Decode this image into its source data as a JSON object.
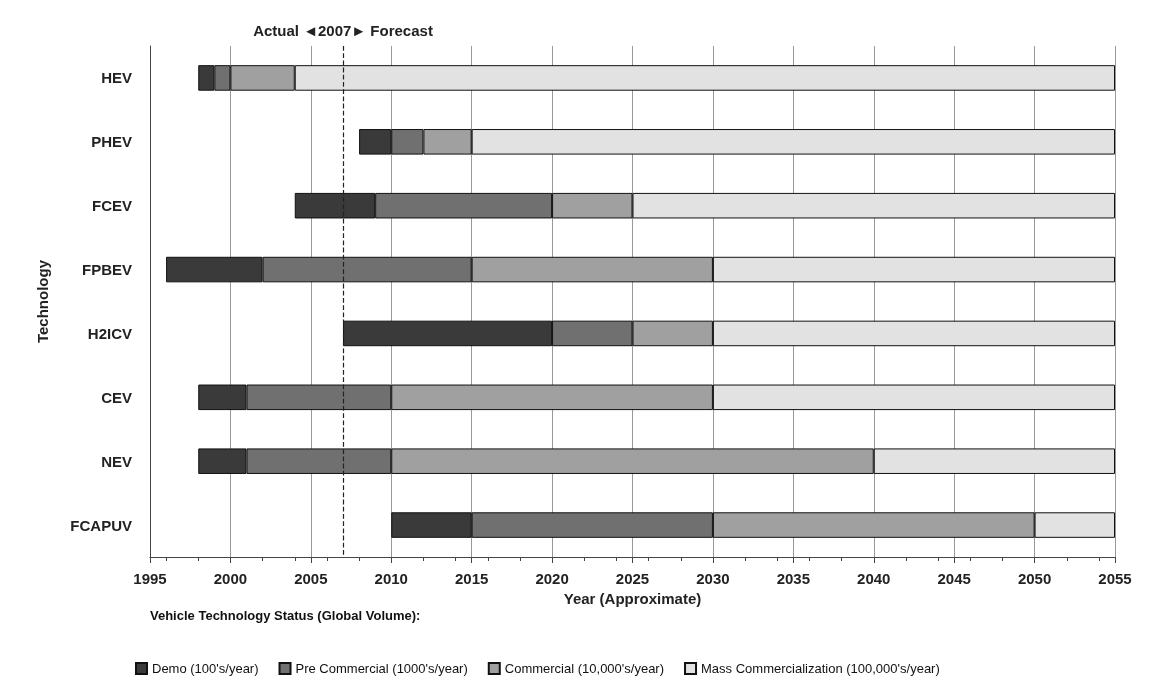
{
  "chart_data": {
    "type": "bar",
    "orientation": "horizontal",
    "xlabel": "Year (Approximate)",
    "ylabel": "Technology",
    "legend_title": "Vehicle Technology Status (Global Volume):",
    "categories": [
      "HEV",
      "PHEV",
      "FCEV",
      "FPBEV",
      "H2ICV",
      "CEV",
      "NEV",
      "FCAPUV"
    ],
    "series": [
      {
        "name": "Demo (100's/year)",
        "color": "#3a3a3a",
        "base": [
          1998,
          2008,
          2004,
          1996,
          2007,
          1998,
          1998,
          2010
        ],
        "values": [
          1,
          2,
          5,
          6,
          13,
          3,
          3,
          5
        ]
      },
      {
        "name": "Pre Commercial (1000's/year)",
        "color": "#707070",
        "base": [
          1999,
          2010,
          2009,
          2002,
          2020,
          2001,
          2001,
          2015
        ],
        "values": [
          1,
          2,
          11,
          13,
          5,
          9,
          9,
          15
        ]
      },
      {
        "name": "Commercial (10,000's/year)",
        "color": "#a0a0a0",
        "base": [
          2000,
          2012,
          2020,
          2015,
          2025,
          2010,
          2010,
          2030
        ],
        "values": [
          4,
          3,
          5,
          15,
          5,
          20,
          30,
          20
        ]
      },
      {
        "name": "Mass Commercialization (100,000's/year)",
        "color": "#e2e2e2",
        "base": [
          2004,
          2015,
          2025,
          2030,
          2030,
          2030,
          2040,
          2050
        ],
        "values": [
          51,
          40,
          30,
          25,
          25,
          25,
          15,
          5
        ]
      }
    ],
    "xlim": [
      1995,
      2055
    ],
    "xticks": [
      1995,
      2000,
      2005,
      2010,
      2015,
      2020,
      2025,
      2030,
      2035,
      2040,
      2045,
      2050,
      2055
    ],
    "grid": "x",
    "legend": "bottom",
    "ref_lines": [
      {
        "axis": "x",
        "value": 2007,
        "label": "Actual ◄2007► Forecast",
        "line_style": "dashed",
        "color": "#222222"
      }
    ]
  }
}
